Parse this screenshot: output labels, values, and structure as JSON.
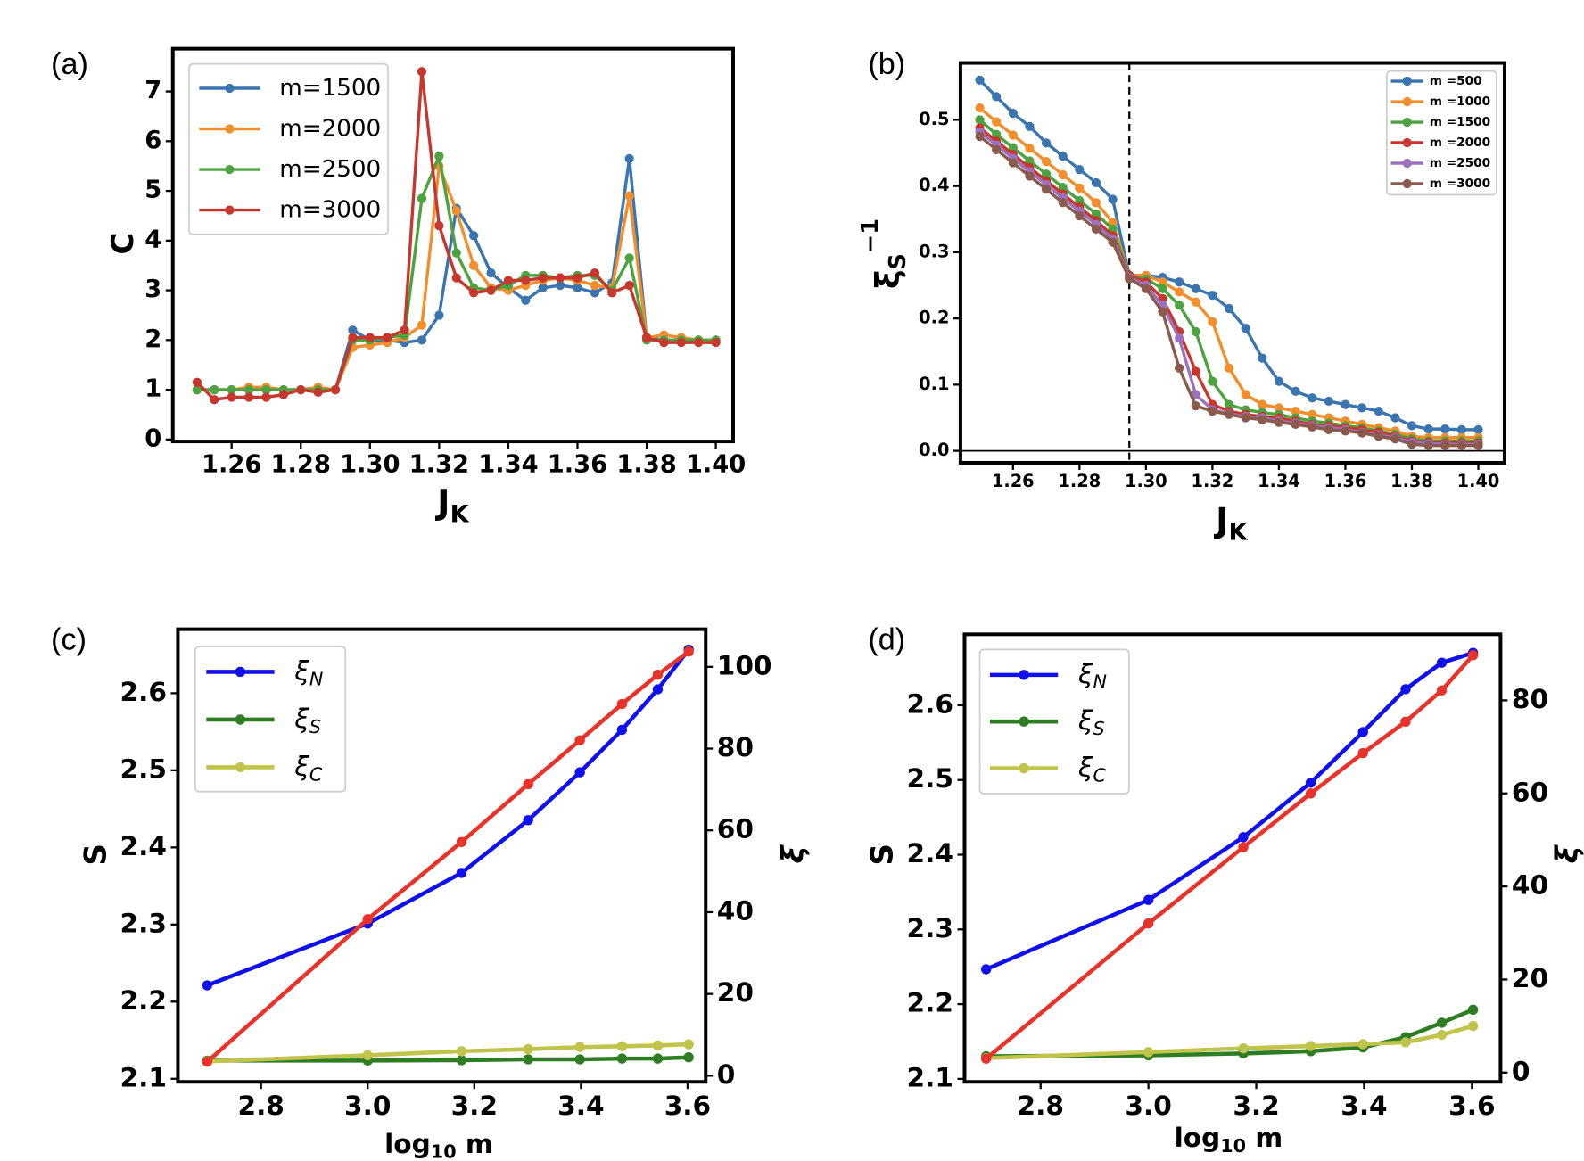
{
  "chart_data": [
    {
      "type": "line",
      "panel": "(a)",
      "xlabel": [
        {
          "text": "J"
        },
        {
          "text": "K",
          "sub": true
        }
      ],
      "ylabel": [
        {
          "text": "C"
        }
      ],
      "x": [
        1.25,
        1.255,
        1.26,
        1.265,
        1.27,
        1.275,
        1.28,
        1.285,
        1.29,
        1.295,
        1.3,
        1.305,
        1.31,
        1.315,
        1.32,
        1.325,
        1.33,
        1.335,
        1.34,
        1.345,
        1.35,
        1.355,
        1.36,
        1.365,
        1.37,
        1.375,
        1.38,
        1.385,
        1.39,
        1.395,
        1.4
      ],
      "xlim": [
        1.243,
        1.405
      ],
      "xticks": [
        1.26,
        1.28,
        {
          "value": 1.3,
          "label": "1.30"
        },
        1.32,
        1.34,
        1.36,
        1.38,
        {
          "value": 1.4,
          "label": "1.40"
        }
      ],
      "ylim": [
        -0.04,
        7.86
      ],
      "yticks": [
        0,
        1,
        2,
        3,
        4,
        5,
        6,
        7
      ],
      "legend": "upper left",
      "series": [
        {
          "name": [
            {
              "text": "m=1500"
            }
          ],
          "color": "#3a75b0",
          "values": [
            1.0,
            1.0,
            1.0,
            1.0,
            1.0,
            1.0,
            1.0,
            1.0,
            1.0,
            2.2,
            2.0,
            2.0,
            1.95,
            2.0,
            2.5,
            4.65,
            4.1,
            3.35,
            3.05,
            2.8,
            3.05,
            3.1,
            3.05,
            2.95,
            3.15,
            5.65,
            2.05,
            2.0,
            2.0,
            2.0,
            2.0
          ]
        },
        {
          "name": [
            {
              "text": "m=2000"
            }
          ],
          "color": "#f28e2b",
          "values": [
            1.0,
            1.0,
            1.0,
            1.05,
            1.05,
            1.0,
            1.0,
            1.05,
            1.0,
            1.85,
            1.9,
            1.95,
            2.05,
            2.3,
            5.5,
            4.6,
            3.5,
            3.05,
            3.0,
            3.1,
            3.2,
            3.25,
            3.2,
            3.1,
            3.05,
            4.9,
            2.05,
            2.1,
            2.05,
            2.0,
            2.0
          ]
        },
        {
          "name": [
            {
              "text": "m=2500"
            }
          ],
          "color": "#4ea341",
          "values": [
            1.0,
            1.0,
            1.0,
            1.0,
            1.0,
            1.0,
            1.0,
            1.0,
            1.0,
            2.0,
            2.0,
            2.05,
            2.1,
            4.85,
            5.7,
            3.75,
            3.05,
            3.0,
            3.1,
            3.3,
            3.3,
            3.25,
            3.3,
            3.3,
            3.0,
            3.65,
            2.0,
            2.0,
            2.0,
            2.0,
            2.0
          ]
        },
        {
          "name": [
            {
              "text": "m=3000"
            }
          ],
          "color": "#c8372d",
          "values": [
            1.15,
            0.8,
            0.85,
            0.85,
            0.85,
            0.9,
            1.0,
            0.95,
            1.0,
            2.05,
            2.05,
            2.05,
            2.2,
            7.4,
            4.3,
            3.25,
            2.95,
            3.0,
            3.2,
            3.2,
            3.25,
            3.25,
            3.25,
            3.35,
            2.95,
            3.1,
            2.05,
            1.95,
            1.95,
            1.95,
            1.95
          ]
        }
      ]
    },
    {
      "type": "line",
      "panel": "(b)",
      "xlabel": [
        {
          "text": "J"
        },
        {
          "text": "K",
          "sub": true
        }
      ],
      "ylabel": [
        {
          "text": "ξ"
        },
        {
          "text": "S",
          "sub": true
        },
        {
          "text": "−1",
          "sup": true
        }
      ],
      "x": [
        1.25,
        1.255,
        1.26,
        1.265,
        1.27,
        1.275,
        1.28,
        1.285,
        1.29,
        1.295,
        1.3,
        1.305,
        1.31,
        1.315,
        1.32,
        1.325,
        1.33,
        1.335,
        1.34,
        1.345,
        1.35,
        1.355,
        1.36,
        1.365,
        1.37,
        1.375,
        1.38,
        1.385,
        1.39,
        1.395,
        1.4
      ],
      "xlim": [
        1.2442,
        1.4079
      ],
      "xticks": [
        1.26,
        1.28,
        {
          "value": 1.3,
          "label": "1.30"
        },
        1.32,
        1.34,
        1.36,
        1.38,
        {
          "value": 1.4,
          "label": "1.40"
        }
      ],
      "ylim": [
        -0.018,
        0.586
      ],
      "yticks": [
        {
          "value": 0,
          "label": "0.0"
        },
        0.1,
        0.2,
        0.3,
        0.4,
        0.5
      ],
      "vline": 1.295,
      "hline": 0,
      "legend": "upper right",
      "series": [
        {
          "name": [
            {
              "text": "m =500"
            }
          ],
          "color": "#3a75b0",
          "values": [
            0.56,
            0.535,
            0.51,
            0.49,
            0.465,
            0.445,
            0.425,
            0.405,
            0.38,
            0.265,
            0.265,
            0.262,
            0.255,
            0.245,
            0.235,
            0.215,
            0.185,
            0.14,
            0.105,
            0.09,
            0.08,
            0.075,
            0.07,
            0.065,
            0.06,
            0.05,
            0.038,
            0.033,
            0.033,
            0.032,
            0.032
          ]
        },
        {
          "name": [
            {
              "text": "m =1000"
            }
          ],
          "color": "#f28e2b",
          "values": [
            0.518,
            0.497,
            0.477,
            0.457,
            0.437,
            0.417,
            0.397,
            0.375,
            0.345,
            0.265,
            0.265,
            0.255,
            0.24,
            0.225,
            0.195,
            0.125,
            0.085,
            0.07,
            0.065,
            0.06,
            0.055,
            0.05,
            0.045,
            0.04,
            0.035,
            0.03,
            0.022,
            0.02,
            0.02,
            0.02,
            0.02
          ]
        },
        {
          "name": [
            {
              "text": "m =1500"
            }
          ],
          "color": "#4ea341",
          "values": [
            0.5,
            0.478,
            0.458,
            0.438,
            0.418,
            0.398,
            0.378,
            0.358,
            0.335,
            0.265,
            0.26,
            0.245,
            0.22,
            0.18,
            0.105,
            0.07,
            0.062,
            0.058,
            0.055,
            0.05,
            0.045,
            0.042,
            0.038,
            0.035,
            0.03,
            0.025,
            0.018,
            0.015,
            0.015,
            0.015,
            0.015
          ]
        },
        {
          "name": [
            {
              "text": "m =2000"
            }
          ],
          "color": "#c8372d",
          "values": [
            0.488,
            0.468,
            0.448,
            0.428,
            0.408,
            0.388,
            0.368,
            0.348,
            0.325,
            0.265,
            0.255,
            0.23,
            0.18,
            0.12,
            0.07,
            0.06,
            0.055,
            0.052,
            0.05,
            0.045,
            0.04,
            0.038,
            0.035,
            0.032,
            0.028,
            0.022,
            0.015,
            0.013,
            0.012,
            0.012,
            0.012
          ]
        },
        {
          "name": [
            {
              "text": "m =2500"
            }
          ],
          "color": "#9a72c0",
          "values": [
            0.482,
            0.462,
            0.442,
            0.422,
            0.402,
            0.382,
            0.362,
            0.342,
            0.32,
            0.262,
            0.25,
            0.22,
            0.17,
            0.085,
            0.062,
            0.056,
            0.052,
            0.05,
            0.045,
            0.042,
            0.038,
            0.035,
            0.032,
            0.028,
            0.024,
            0.02,
            0.013,
            0.011,
            0.01,
            0.01,
            0.01
          ]
        },
        {
          "name": [
            {
              "text": "m =3000"
            }
          ],
          "color": "#8a5a4c",
          "values": [
            0.475,
            0.455,
            0.435,
            0.415,
            0.395,
            0.375,
            0.355,
            0.335,
            0.315,
            0.26,
            0.245,
            0.21,
            0.125,
            0.068,
            0.06,
            0.055,
            0.05,
            0.047,
            0.043,
            0.04,
            0.036,
            0.032,
            0.03,
            0.027,
            0.022,
            0.018,
            0.01,
            0.008,
            0.008,
            0.008,
            0.008
          ]
        }
      ]
    },
    {
      "type": "line",
      "panel": "(c)",
      "xlabel": [
        {
          "text": "log"
        },
        {
          "text": "10",
          "sub": true
        },
        {
          "text": " m"
        }
      ],
      "ylabel": [
        {
          "text": "S"
        }
      ],
      "ylabel_color": "#e8322a",
      "ytick_color": "#c8372d",
      "y2label": [
        {
          "text": "ξ"
        }
      ],
      "y2label_color": "#1010ee",
      "y2tick_color": "#1010ee",
      "x": [
        2.699,
        3.0,
        3.176,
        3.301,
        3.398,
        3.477,
        3.544,
        3.602
      ],
      "xlim": [
        2.644,
        3.634
      ],
      "xticks": [
        2.8,
        {
          "value": 3,
          "label": "3.0"
        },
        3.2,
        3.4,
        3.6
      ],
      "ylim": [
        2.096,
        2.683
      ],
      "yticks": [
        2.1,
        2.2,
        2.3,
        2.4,
        2.5,
        2.6
      ],
      "y2lim": [
        -1.5,
        109.2
      ],
      "y2ticks": [
        0,
        20,
        40,
        60,
        80,
        100
      ],
      "legend": "upper left",
      "series": [
        {
          "name": [
            {
              "text": "ξ"
            },
            {
              "text": "N",
              "sub": true
            }
          ],
          "color": "#1010ee",
          "axis": "y2",
          "values": [
            22.1,
            37.2,
            49.6,
            62.5,
            74.2,
            84.6,
            94.5,
            104.2
          ]
        },
        {
          "name": [
            {
              "text": "ξ"
            },
            {
              "text": "S",
              "sub": true
            }
          ],
          "color": "#2e7d22",
          "axis": "y2",
          "values": [
            3.7,
            3.7,
            3.8,
            4.0,
            4.0,
            4.2,
            4.2,
            4.5
          ]
        },
        {
          "name": [
            {
              "text": "ξ"
            },
            {
              "text": "C",
              "sub": true
            }
          ],
          "color": "#c1c44a",
          "axis": "y2",
          "values": [
            3.5,
            5.0,
            6.0,
            6.5,
            7.0,
            7.2,
            7.4,
            7.7
          ]
        },
        {
          "color": "#e8322a",
          "values": [
            2.122,
            2.307,
            2.407,
            2.482,
            2.539,
            2.586,
            2.624,
            2.654
          ]
        }
      ]
    },
    {
      "type": "line",
      "panel": "(d)",
      "xlabel": [
        {
          "text": "log"
        },
        {
          "text": "10",
          "sub": true
        },
        {
          "text": " m"
        }
      ],
      "ylabel": [
        {
          "text": "S"
        }
      ],
      "ylabel_color": "#e8322a",
      "ytick_color": "#c8372d",
      "y2label": [
        {
          "text": "ξ"
        }
      ],
      "y2label_color": "#1010ee",
      "y2tick_color": "#1010ee",
      "x": [
        2.699,
        3.0,
        3.176,
        3.301,
        3.398,
        3.477,
        3.544,
        3.602
      ],
      "xlim": [
        2.659,
        3.653
      ],
      "xticks": [
        2.8,
        {
          "value": 3,
          "label": "3.0"
        },
        3.2,
        3.4,
        3.6
      ],
      "ylim": [
        2.096,
        2.695
      ],
      "yticks": [
        2.1,
        2.2,
        2.3,
        2.4,
        2.5,
        2.6
      ],
      "y2lim": [
        -2.0,
        94.2
      ],
      "y2ticks": [
        0,
        20,
        40,
        60,
        80
      ],
      "legend": "upper left",
      "series": [
        {
          "name": [
            {
              "text": "ξ"
            },
            {
              "text": "N",
              "sub": true
            }
          ],
          "color": "#1010ee",
          "axis": "y2",
          "values": [
            22.2,
            37.1,
            50.6,
            62.3,
            73.2,
            82.4,
            88.1,
            90.2
          ]
        },
        {
          "name": [
            {
              "text": "ξ"
            },
            {
              "text": "S",
              "sub": true
            }
          ],
          "color": "#2e7d22",
          "axis": "y2",
          "values": [
            3.5,
            3.7,
            4.1,
            4.6,
            5.4,
            7.6,
            10.7,
            13.5
          ]
        },
        {
          "name": [
            {
              "text": "ξ"
            },
            {
              "text": "C",
              "sub": true
            }
          ],
          "color": "#c1c44a",
          "axis": "y2",
          "values": [
            3.1,
            4.4,
            5.2,
            5.7,
            6.1,
            6.5,
            8.1,
            10.0
          ]
        },
        {
          "color": "#e8322a",
          "values": [
            2.127,
            2.308,
            2.41,
            2.482,
            2.536,
            2.578,
            2.62,
            2.667
          ]
        }
      ]
    }
  ]
}
